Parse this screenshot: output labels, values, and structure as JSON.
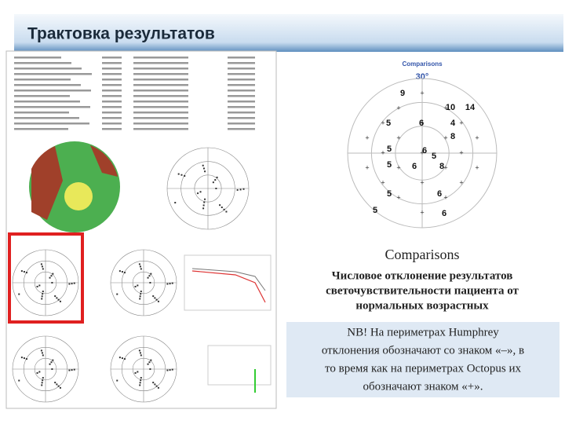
{
  "header": {
    "title": "Трактовка результатов"
  },
  "comparisons_diagram": {
    "title": "Comparisons",
    "angle": "30°",
    "values": [
      9,
      10,
      14,
      5,
      6,
      4,
      8,
      5,
      6,
      5,
      5,
      8,
      6,
      5,
      6,
      5,
      6
    ]
  },
  "caption": {
    "title": "Comparisons",
    "lines": [
      "Числовое отклонение результатов",
      "светочувствительности пациента от",
      "нормальных возрастных"
    ]
  },
  "note": {
    "lines": [
      "NB! На периметрах Humphrey",
      "отклонения обозначают со знаком «–», в",
      "то время как на периметрах Octopus их",
      "обозначают знаком «+»."
    ]
  }
}
